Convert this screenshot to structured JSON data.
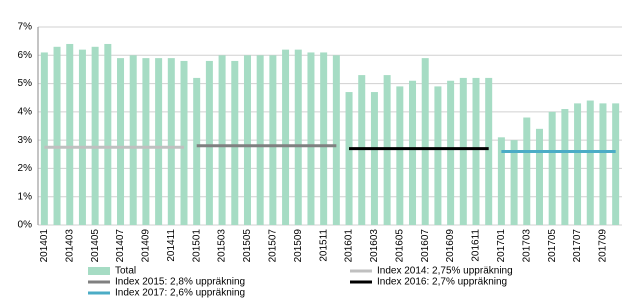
{
  "chart_data": {
    "type": "bar",
    "categories": [
      "201401",
      null,
      "201403",
      null,
      "201405",
      null,
      "201407",
      null,
      "201409",
      null,
      "201411",
      null,
      "201501",
      null,
      "201503",
      null,
      "201505",
      null,
      "201507",
      null,
      "201509",
      null,
      "201511",
      null,
      "201601",
      null,
      "201603",
      null,
      "201605",
      null,
      "201607",
      null,
      "201609",
      null,
      "201611",
      null,
      "201701",
      null,
      "201703",
      null,
      "201705",
      null,
      "201707",
      null,
      "201709",
      null
    ],
    "series": [
      {
        "name": "Total",
        "type": "bar",
        "color": "#a6dcc4",
        "values": [
          6.1,
          6.3,
          6.4,
          6.2,
          6.3,
          6.4,
          5.9,
          6.0,
          5.9,
          5.9,
          5.9,
          5.8,
          5.2,
          5.8,
          6.0,
          5.8,
          6.0,
          6.0,
          6.0,
          6.2,
          6.2,
          6.1,
          6.1,
          6.0,
          4.7,
          5.3,
          4.7,
          5.3,
          4.9,
          5.1,
          5.9,
          4.9,
          5.1,
          5.2,
          5.2,
          5.2,
          3.1,
          3.0,
          3.8,
          3.4,
          4.0,
          4.1,
          4.3,
          4.4,
          4.3,
          4.3
        ]
      },
      {
        "name": "Index 2014: 2,75% uppräkning",
        "type": "line",
        "color": "#c0c0c0",
        "values": [
          2.75,
          2.75,
          2.75,
          2.75,
          2.75,
          2.75,
          2.75,
          2.75,
          2.75,
          2.75,
          2.75,
          2.75,
          null,
          null,
          null,
          null,
          null,
          null,
          null,
          null,
          null,
          null,
          null,
          null,
          null,
          null,
          null,
          null,
          null,
          null,
          null,
          null,
          null,
          null,
          null,
          null,
          null,
          null,
          null,
          null,
          null,
          null,
          null,
          null,
          null,
          null
        ]
      },
      {
        "name": "Index 2015: 2,8% uppräkning",
        "type": "line",
        "color": "#808080",
        "values": [
          null,
          null,
          null,
          null,
          null,
          null,
          null,
          null,
          null,
          null,
          null,
          null,
          2.8,
          2.8,
          2.8,
          2.8,
          2.8,
          2.8,
          2.8,
          2.8,
          2.8,
          2.8,
          2.8,
          2.8,
          null,
          null,
          null,
          null,
          null,
          null,
          null,
          null,
          null,
          null,
          null,
          null,
          null,
          null,
          null,
          null,
          null,
          null,
          null,
          null,
          null,
          null
        ]
      },
      {
        "name": "Index 2016: 2,7% uppräkning",
        "type": "line",
        "color": "#000000",
        "values": [
          null,
          null,
          null,
          null,
          null,
          null,
          null,
          null,
          null,
          null,
          null,
          null,
          null,
          null,
          null,
          null,
          null,
          null,
          null,
          null,
          null,
          null,
          null,
          null,
          2.7,
          2.7,
          2.7,
          2.7,
          2.7,
          2.7,
          2.7,
          2.7,
          2.7,
          2.7,
          2.7,
          2.7,
          null,
          null,
          null,
          null,
          null,
          null,
          null,
          null,
          null,
          null
        ]
      },
      {
        "name": "Index 2017: 2,6% uppräkning",
        "type": "line",
        "color": "#4bacc6",
        "values": [
          null,
          null,
          null,
          null,
          null,
          null,
          null,
          null,
          null,
          null,
          null,
          null,
          null,
          null,
          null,
          null,
          null,
          null,
          null,
          null,
          null,
          null,
          null,
          null,
          null,
          null,
          null,
          null,
          null,
          null,
          null,
          null,
          null,
          null,
          null,
          null,
          2.6,
          2.6,
          2.6,
          2.6,
          2.6,
          2.6,
          2.6,
          2.6,
          2.6,
          2.6
        ]
      }
    ],
    "ylim": [
      0,
      7
    ],
    "yticks": [
      {
        "value": 0,
        "label": "0%"
      },
      {
        "value": 1,
        "label": "1%"
      },
      {
        "value": 2,
        "label": "2%"
      },
      {
        "value": 3,
        "label": "3%"
      },
      {
        "value": 4,
        "label": "4%"
      },
      {
        "value": 5,
        "label": "5%"
      },
      {
        "value": 6,
        "label": "6%"
      },
      {
        "value": 7,
        "label": "7%"
      }
    ],
    "grid": true
  }
}
